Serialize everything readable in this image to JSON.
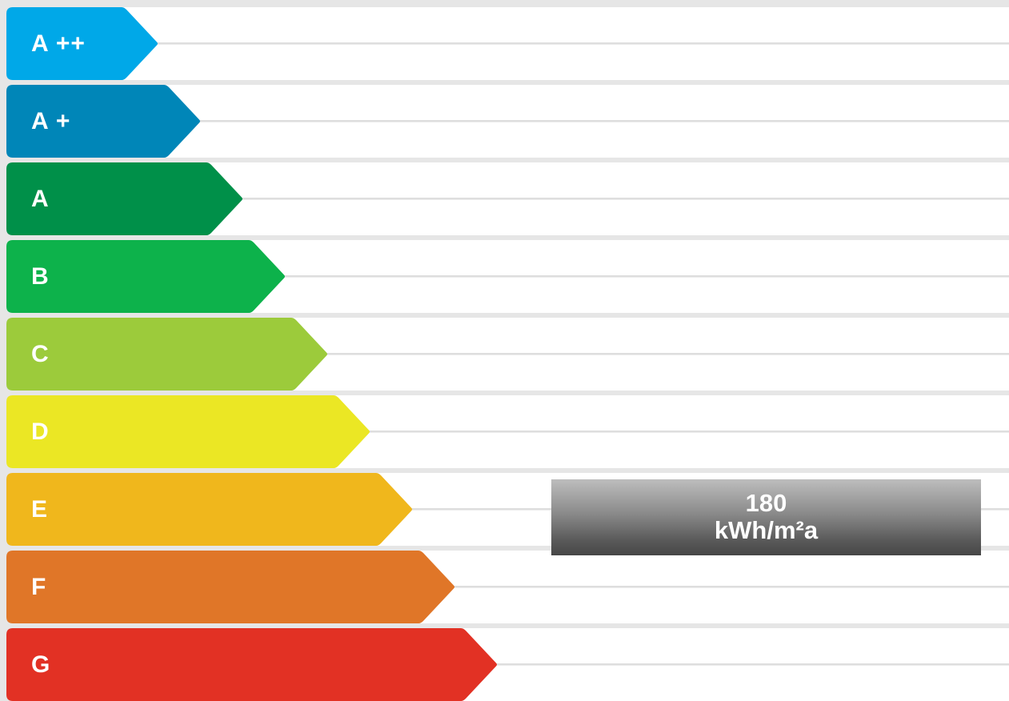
{
  "energy_label": {
    "classes": [
      {
        "label": "A ++",
        "color": "#00a8e8"
      },
      {
        "label": "A +",
        "color": "#0086b8"
      },
      {
        "label": "A",
        "color": "#009049"
      },
      {
        "label": "B",
        "color": "#0db24b"
      },
      {
        "label": "C",
        "color": "#9ccb3b"
      },
      {
        "label": "D",
        "color": "#ebe724"
      },
      {
        "label": "E",
        "color": "#f0b71c"
      },
      {
        "label": "F",
        "color": "#e07628"
      },
      {
        "label": "G",
        "color": "#e23124"
      }
    ],
    "rating": {
      "value": "180",
      "unit": "kWh/m²a",
      "class": "E"
    }
  }
}
